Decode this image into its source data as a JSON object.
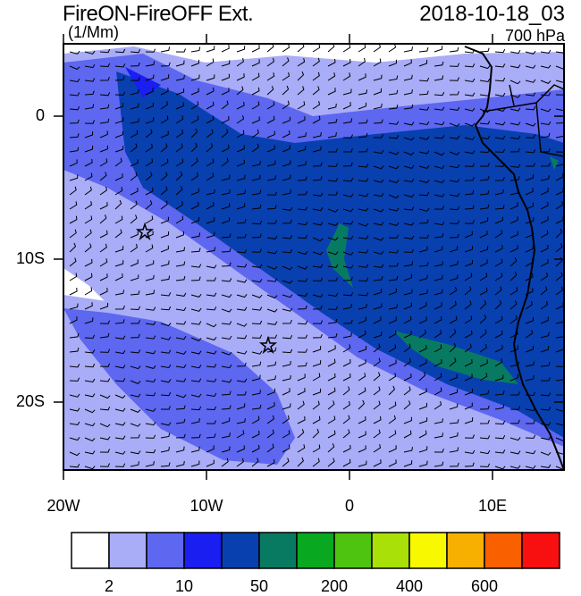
{
  "header": {
    "title": "FireON-FireOFF Ext.",
    "units": "(1/Mm)",
    "datetime": "2018-10-18_03",
    "level": "700 hPa"
  },
  "axes": {
    "lat_ticks": [
      "0",
      "10S",
      "20S"
    ],
    "lon_ticks": [
      "20W",
      "10W",
      "0",
      "10E"
    ]
  },
  "colorbar": {
    "colors": [
      "#ffffff",
      "#a9acf7",
      "#5d67f0",
      "#1a1ef0",
      "#0840b0",
      "#087a62",
      "#08a820",
      "#4ec410",
      "#a8e008",
      "#f8f800",
      "#f8b000",
      "#f86000",
      "#f81010"
    ],
    "labels": [
      "2",
      "10",
      "50",
      "200",
      "400",
      "600"
    ]
  },
  "map": {
    "extent": {
      "lon_min": -20,
      "lon_max": 15,
      "lat_min": -24.5,
      "lat_max": 4.5
    },
    "markers": [
      {
        "name": "star-1",
        "lon": -14.4,
        "lat": -8.0
      },
      {
        "name": "star-2",
        "lon": -5.6,
        "lat": -16.0
      }
    ]
  }
}
